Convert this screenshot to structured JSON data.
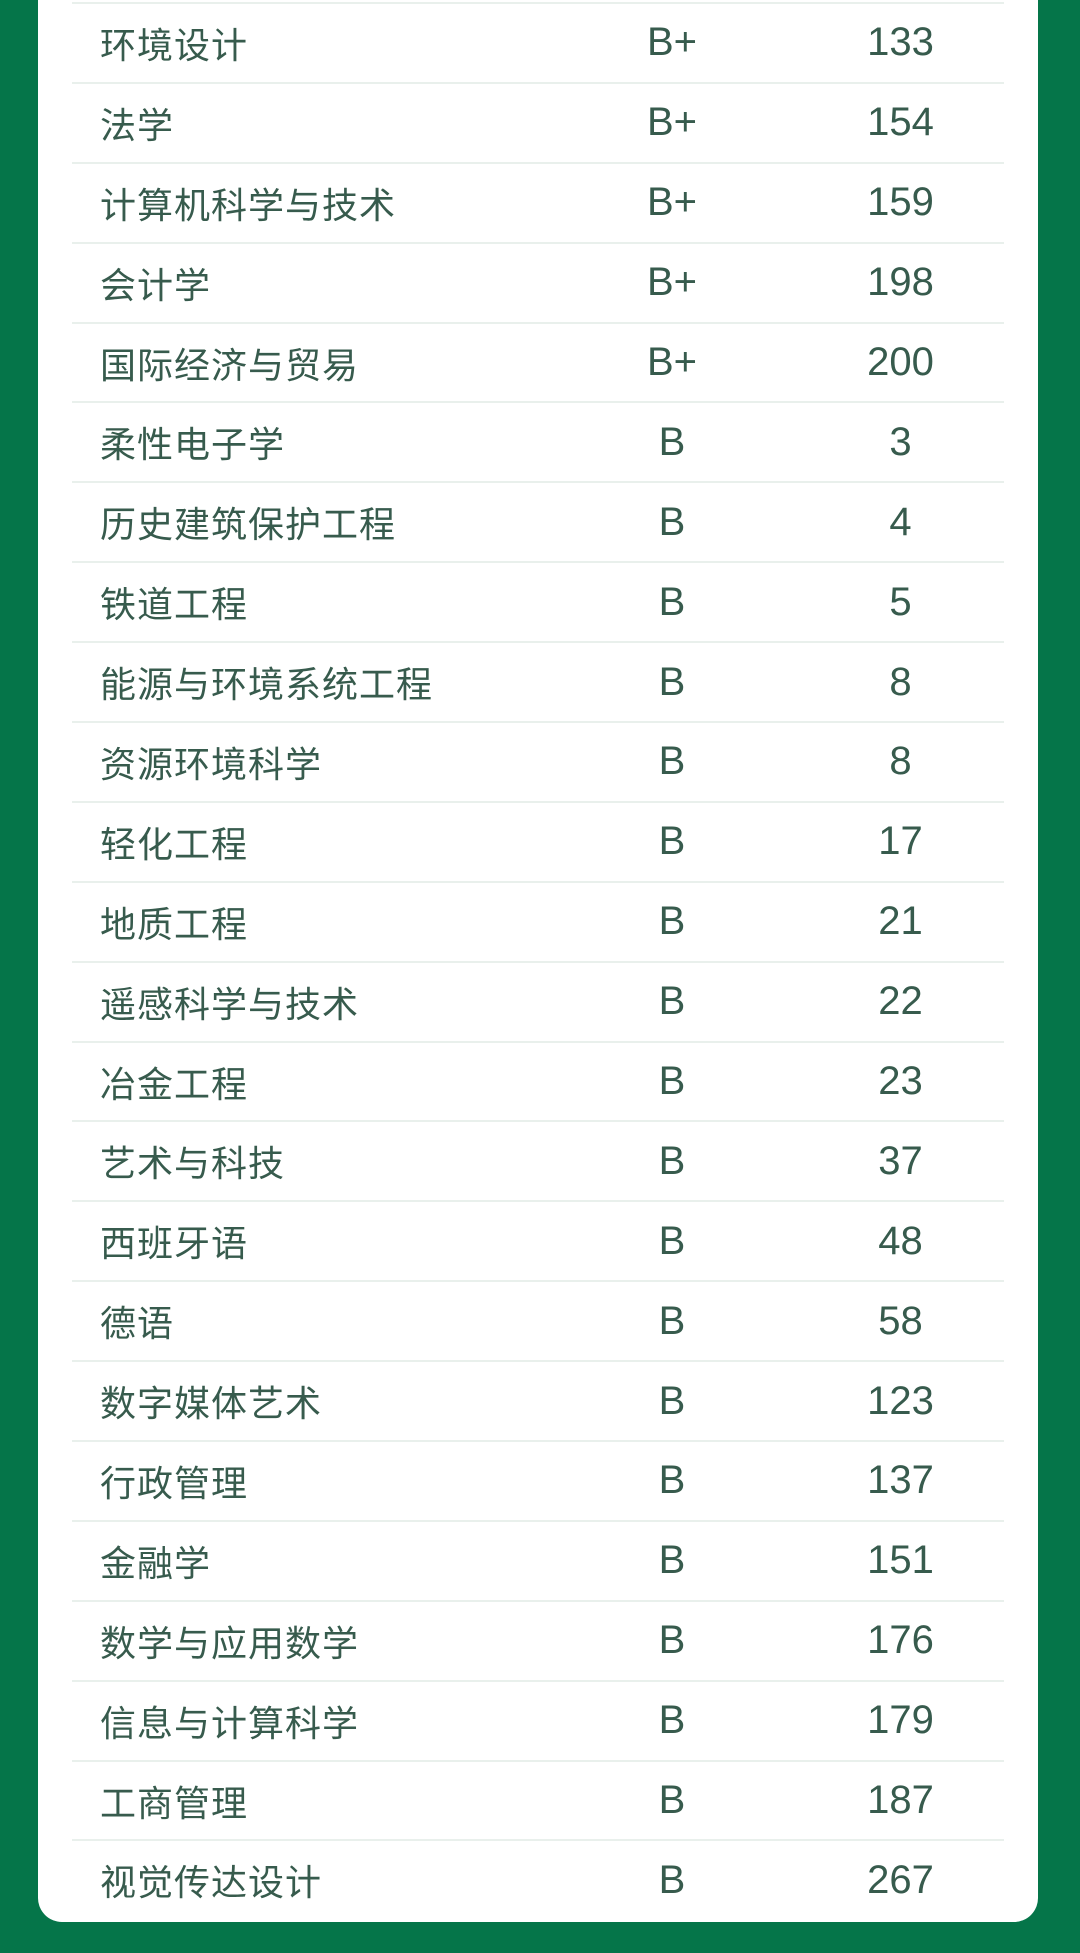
{
  "theme": {
    "frame_color": "#057549",
    "card_color": "#ffffff",
    "text_color": "#375B4D",
    "divider_color": "#E9F0EC"
  },
  "table": {
    "rows": [
      {
        "major": "环境设计",
        "grade": "B+",
        "count": "133"
      },
      {
        "major": "法学",
        "grade": "B+",
        "count": "154"
      },
      {
        "major": "计算机科学与技术",
        "grade": "B+",
        "count": "159"
      },
      {
        "major": "会计学",
        "grade": "B+",
        "count": "198"
      },
      {
        "major": "国际经济与贸易",
        "grade": "B+",
        "count": "200"
      },
      {
        "major": "柔性电子学",
        "grade": "B",
        "count": "3"
      },
      {
        "major": "历史建筑保护工程",
        "grade": "B",
        "count": "4"
      },
      {
        "major": "铁道工程",
        "grade": "B",
        "count": "5"
      },
      {
        "major": "能源与环境系统工程",
        "grade": "B",
        "count": "8"
      },
      {
        "major": "资源环境科学",
        "grade": "B",
        "count": "8"
      },
      {
        "major": "轻化工程",
        "grade": "B",
        "count": "17"
      },
      {
        "major": "地质工程",
        "grade": "B",
        "count": "21"
      },
      {
        "major": "遥感科学与技术",
        "grade": "B",
        "count": "22"
      },
      {
        "major": "冶金工程",
        "grade": "B",
        "count": "23"
      },
      {
        "major": "艺术与科技",
        "grade": "B",
        "count": "37"
      },
      {
        "major": "西班牙语",
        "grade": "B",
        "count": "48"
      },
      {
        "major": "德语",
        "grade": "B",
        "count": "58"
      },
      {
        "major": "数字媒体艺术",
        "grade": "B",
        "count": "123"
      },
      {
        "major": "行政管理",
        "grade": "B",
        "count": "137"
      },
      {
        "major": "金融学",
        "grade": "B",
        "count": "151"
      },
      {
        "major": "数学与应用数学",
        "grade": "B",
        "count": "176"
      },
      {
        "major": "信息与计算科学",
        "grade": "B",
        "count": "179"
      },
      {
        "major": "工商管理",
        "grade": "B",
        "count": "187"
      },
      {
        "major": "视觉传达设计",
        "grade": "B",
        "count": "267"
      }
    ]
  }
}
